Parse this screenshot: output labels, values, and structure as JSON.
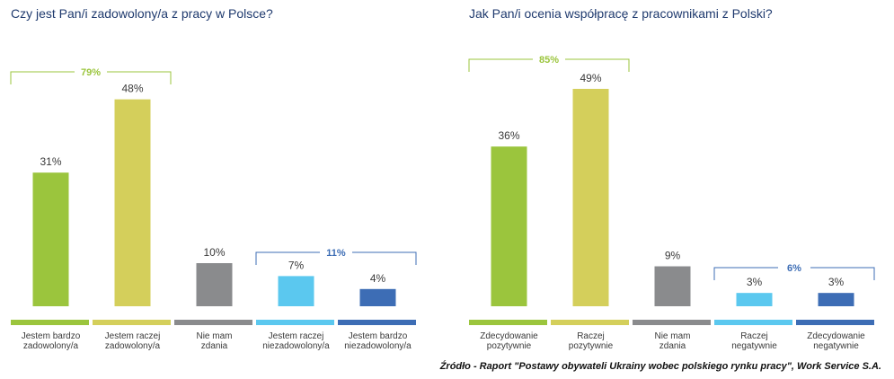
{
  "source_note": "Źródło - Raport \"Postawy obywateli Ukrainy wobec polskiego rynku pracy\", Work Service S.A.",
  "colors": {
    "title": "#1f3a6e",
    "positive_bracket": "#9bc53d",
    "negative_bracket": "#3d6db5"
  },
  "chart_data": [
    {
      "type": "bar",
      "title": "Czy jest Pan/i zadowolony/a z pracy w Polsce?",
      "categories": [
        [
          "Jestem bardzo",
          "zadowolony/a"
        ],
        [
          "Jestem raczej",
          "zadowolony/a"
        ],
        [
          "Nie mam",
          "zdania"
        ],
        [
          "Jestem raczej",
          "niezadowolony/a"
        ],
        [
          "Jestem bardzo",
          "niezadowolony/a"
        ]
      ],
      "values": [
        31,
        48,
        10,
        7,
        4
      ],
      "value_labels": [
        "31%",
        "48%",
        "10%",
        "7%",
        "4%"
      ],
      "colors": [
        "#9bc53d",
        "#d4cf5b",
        "#8a8b8d",
        "#5bc8ef",
        "#3d6db5"
      ],
      "groups": [
        {
          "label": "79%",
          "from": 0,
          "to": 1,
          "color": "#9bc53d"
        },
        {
          "label": "11%",
          "from": 3,
          "to": 4,
          "color": "#3d6db5"
        }
      ],
      "ylim": [
        0,
        50
      ]
    },
    {
      "type": "bar",
      "title": "Jak Pan/i ocenia współpracę z pracownikami z Polski?",
      "categories": [
        [
          "Zdecydowanie",
          "pozytywnie"
        ],
        [
          "Raczej",
          "pozytywnie"
        ],
        [
          "Nie mam",
          "zdania"
        ],
        [
          "Raczej",
          "negatywnie"
        ],
        [
          "Zdecydowanie",
          "negatywnie"
        ]
      ],
      "values": [
        36,
        49,
        9,
        3,
        3
      ],
      "value_labels": [
        "36%",
        "49%",
        "9%",
        "3%",
        "3%"
      ],
      "colors": [
        "#9bc53d",
        "#d4cf5b",
        "#8a8b8d",
        "#5bc8ef",
        "#3d6db5"
      ],
      "groups": [
        {
          "label": "85%",
          "from": 0,
          "to": 1,
          "color": "#9bc53d"
        },
        {
          "label": "6%",
          "from": 3,
          "to": 4,
          "color": "#3d6db5"
        }
      ],
      "ylim": [
        0,
        50
      ]
    }
  ]
}
